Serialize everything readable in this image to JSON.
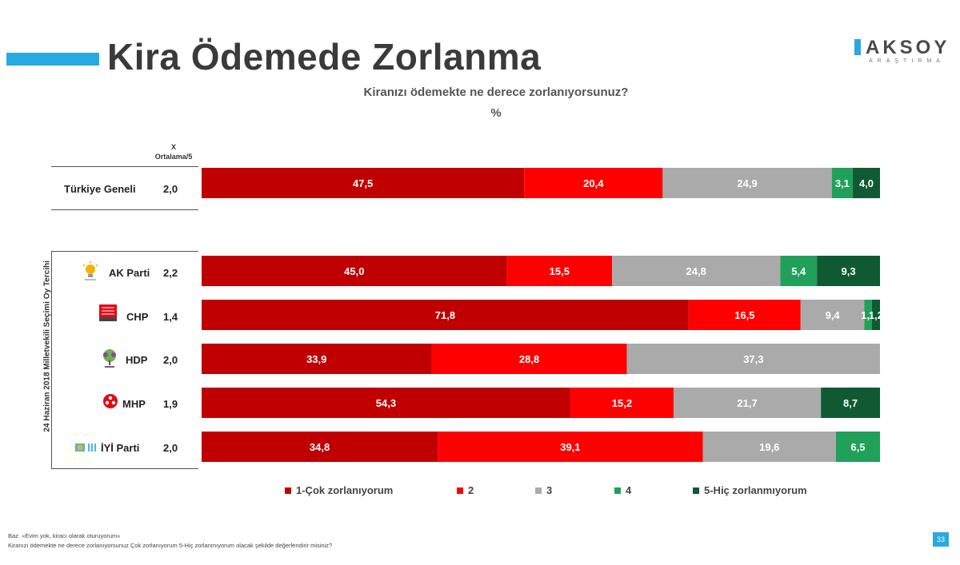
{
  "slide": {
    "title": "Kira Ödemede Zorlanma",
    "logo_text": "AKSOY",
    "logo_subtext": "ARAŞTIRMA",
    "page_number": "33"
  },
  "chart_data": {
    "type": "bar",
    "orientation": "horizontal",
    "stacked": true,
    "title": "Kiranızı ödemekte ne derece zorlanıyorsunuz?",
    "unit": "%",
    "average_header": [
      "X",
      "Ortalama/5"
    ],
    "group_label": "24 Haziran 2018 Milletvekili Seçimi Oy Tercihi",
    "categories": [
      "Türkiye Geneli",
      "AK Parti",
      "CHP",
      "HDP",
      "MHP",
      "İYİ Parti"
    ],
    "averages": [
      "2,0",
      "2,2",
      "1,4",
      "2,0",
      "1,9",
      "2,0"
    ],
    "series": [
      {
        "name": "1-Çok zorlanıyorum",
        "color": "#c00000",
        "values": [
          47.5,
          45.0,
          71.8,
          33.9,
          54.3,
          34.8
        ],
        "labels": [
          "47,5",
          "45,0",
          "71,8",
          "33,9",
          "54,3",
          "34,8"
        ]
      },
      {
        "name": "2",
        "color": "#ff0000",
        "values": [
          20.4,
          15.5,
          16.5,
          28.8,
          15.2,
          39.1
        ],
        "labels": [
          "20,4",
          "15,5",
          "16,5",
          "28,8",
          "15,2",
          "39,1"
        ]
      },
      {
        "name": "3",
        "color": "#aaaaaa",
        "values": [
          24.9,
          24.8,
          9.4,
          37.3,
          21.7,
          19.6
        ],
        "labels": [
          "24,9",
          "24,8",
          "9,4",
          "37,3",
          "21,7",
          "19,6"
        ]
      },
      {
        "name": "4",
        "color": "#21a05a",
        "values": [
          3.1,
          5.4,
          1.1,
          0,
          0,
          6.5
        ],
        "labels": [
          "3,1",
          "5,4",
          "1,1",
          "",
          "",
          "6,5"
        ]
      },
      {
        "name": "5-Hiç zorlanmıyorum",
        "color": "#0f5a32",
        "values": [
          4.0,
          9.3,
          1.2,
          0,
          8.7,
          0
        ],
        "labels": [
          "4,0",
          "9,3",
          "1,2",
          "",
          "8,7",
          ""
        ]
      }
    ],
    "xlim": [
      0,
      100
    ],
    "legend_position": "bottom",
    "grid": false
  },
  "footnotes": {
    "base": "Baz: «Evim yok, kiracı olarak oturuyorum»",
    "question": "Kiranızı ödemekte ne derece zorlanıyorsunuz Çok zorlanıyorum 5-Hiç zorlanmıyorum olacak şekilde değerlendirir misiniz?"
  }
}
